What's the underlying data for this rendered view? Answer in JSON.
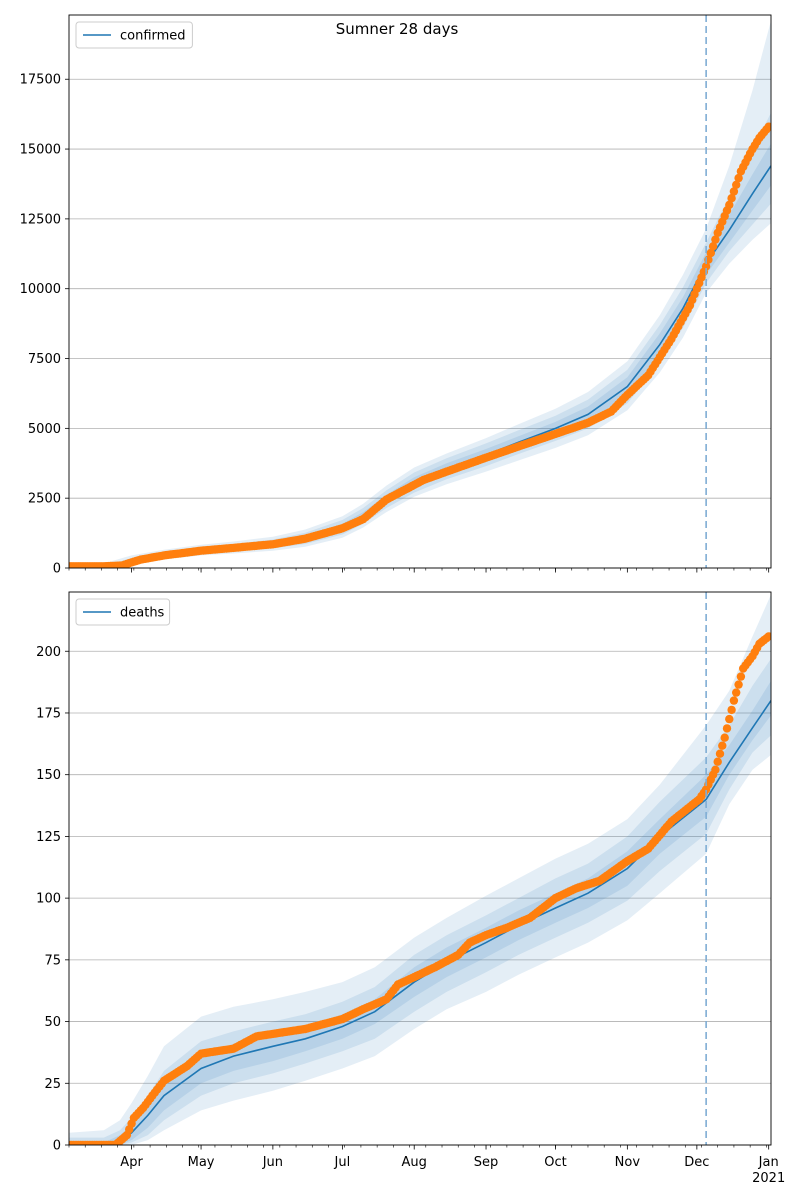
{
  "figure": {
    "title": "Sumner 28 days"
  },
  "colors": {
    "model": "#1f77b4",
    "band": "#1f77b4",
    "observed": "#ff7f0e",
    "grid": "#b0b0b0",
    "forecast_line": "#7fadd4"
  },
  "chart_data": [
    {
      "type": "line",
      "title": "",
      "legend": {
        "entries": [
          "confirmed"
        ],
        "placement": "upper-left"
      },
      "x_axis": {
        "type": "date",
        "range": [
          "2020-03-05",
          "2021-01-02"
        ],
        "ticks": [
          {
            "date": "2020-04-01",
            "label": "Apr"
          },
          {
            "date": "2020-05-01",
            "label": "May"
          },
          {
            "date": "2020-06-01",
            "label": "Jun"
          },
          {
            "date": "2020-07-01",
            "label": "Jul"
          },
          {
            "date": "2020-08-01",
            "label": "Aug"
          },
          {
            "date": "2020-09-01",
            "label": "Sep"
          },
          {
            "date": "2020-10-01",
            "label": "Oct"
          },
          {
            "date": "2020-11-01",
            "label": "Nov"
          },
          {
            "date": "2020-12-01",
            "label": "Dec"
          },
          {
            "date": "2021-01-01",
            "label": "Jan",
            "sublabel": "2021"
          }
        ],
        "show_tick_labels": false
      },
      "y_axis": {
        "range": [
          0,
          19800
        ],
        "ticks": [
          0,
          2500,
          5000,
          7500,
          10000,
          12500,
          15000,
          17500
        ],
        "grid": true
      },
      "forecast_start": "2020-12-05",
      "model": {
        "name": "confirmed",
        "points": [
          [
            "2020-03-05",
            0
          ],
          [
            "2020-03-12",
            5
          ],
          [
            "2020-03-19",
            20
          ],
          [
            "2020-03-24",
            60
          ],
          [
            "2020-04-01",
            250
          ],
          [
            "2020-04-15",
            450
          ],
          [
            "2020-05-01",
            620
          ],
          [
            "2020-05-15",
            720
          ],
          [
            "2020-06-01",
            860
          ],
          [
            "2020-06-15",
            1050
          ],
          [
            "2020-07-01",
            1450
          ],
          [
            "2020-07-10",
            1850
          ],
          [
            "2020-07-20",
            2450
          ],
          [
            "2020-08-01",
            3050
          ],
          [
            "2020-08-15",
            3550
          ],
          [
            "2020-09-01",
            4050
          ],
          [
            "2020-09-15",
            4500
          ],
          [
            "2020-10-01",
            5000
          ],
          [
            "2020-10-15",
            5500
          ],
          [
            "2020-11-01",
            6500
          ],
          [
            "2020-11-15",
            8000
          ],
          [
            "2020-11-25",
            9300
          ],
          [
            "2020-12-05",
            10900
          ],
          [
            "2020-12-15",
            12100
          ],
          [
            "2020-12-25",
            13400
          ],
          [
            "2021-01-02",
            14400
          ]
        ],
        "bands": [
          {
            "lower": [
              0,
              0,
              0,
              0,
              120,
              300,
              450,
              520,
              620,
              760,
              1080,
              1450,
              2000,
              2550,
              3000,
              3450,
              3850,
              4300,
              4750,
              5650,
              7000,
              8250,
              9850,
              10900,
              11750,
              12350
            ],
            "upper": [
              0,
              50,
              120,
              260,
              450,
              650,
              830,
              950,
              1120,
              1380,
              1850,
              2300,
              2950,
              3600,
              4100,
              4650,
              5150,
              5700,
              6300,
              7400,
              9050,
              10500,
              12150,
              14400,
              17100,
              19600
            ]
          },
          {
            "lower": [
              0,
              0,
              0,
              10,
              170,
              350,
              510,
              590,
              700,
              860,
              1200,
              1580,
              2150,
              2700,
              3180,
              3650,
              4080,
              4550,
              5000,
              5900,
              7300,
              8600,
              10200,
              11350,
              12300,
              13050
            ],
            "upper": [
              0,
              30,
              70,
              160,
              360,
              560,
              740,
              860,
              1020,
              1260,
              1720,
              2150,
              2780,
              3420,
              3930,
              4460,
              4930,
              5450,
              6030,
              7100,
              8700,
              10050,
              11650,
              13300,
              15000,
              16300
            ]
          },
          {
            "lower": [
              0,
              2,
              10,
              35,
              210,
              400,
              570,
              660,
              780,
              950,
              1320,
              1710,
              2290,
              2860,
              3360,
              3850,
              4300,
              4780,
              5250,
              6180,
              7600,
              8920,
              10500,
              11650,
              12800,
              13700
            ],
            "upper": [
              0,
              12,
              40,
              100,
              300,
              510,
              680,
              790,
              950,
              1160,
              1590,
              2000,
              2620,
              3250,
              3750,
              4260,
              4720,
              5230,
              5780,
              6830,
              8400,
              9700,
              11300,
              12650,
              14100,
              15200
            ]
          }
        ]
      },
      "observed": {
        "name": "confirmed observations",
        "points": [
          [
            "2020-03-05",
            60
          ],
          [
            "2020-03-12",
            60
          ],
          [
            "2020-03-20",
            60
          ],
          [
            "2020-03-28",
            90
          ],
          [
            "2020-04-01",
            200
          ],
          [
            "2020-04-05",
            300
          ],
          [
            "2020-04-15",
            450
          ],
          [
            "2020-05-01",
            620
          ],
          [
            "2020-05-15",
            720
          ],
          [
            "2020-06-01",
            850
          ],
          [
            "2020-06-15",
            1050
          ],
          [
            "2020-07-01",
            1420
          ],
          [
            "2020-07-10",
            1750
          ],
          [
            "2020-07-15",
            2100
          ],
          [
            "2020-07-20",
            2450
          ],
          [
            "2020-07-28",
            2800
          ],
          [
            "2020-08-05",
            3150
          ],
          [
            "2020-08-15",
            3450
          ],
          [
            "2020-09-01",
            3950
          ],
          [
            "2020-09-15",
            4350
          ],
          [
            "2020-10-01",
            4800
          ],
          [
            "2020-10-15",
            5200
          ],
          [
            "2020-10-25",
            5600
          ],
          [
            "2020-11-01",
            6200
          ],
          [
            "2020-11-10",
            6900
          ],
          [
            "2020-11-20",
            8200
          ],
          [
            "2020-11-28",
            9400
          ],
          [
            "2020-12-05",
            10800
          ],
          [
            "2020-12-10",
            12000
          ],
          [
            "2020-12-15",
            13000
          ],
          [
            "2020-12-20",
            14200
          ],
          [
            "2020-12-25",
            15000
          ],
          [
            "2020-12-28",
            15400
          ],
          [
            "2021-01-01",
            15800
          ]
        ]
      }
    },
    {
      "type": "line",
      "title": "",
      "legend": {
        "entries": [
          "deaths"
        ],
        "placement": "upper-left"
      },
      "x_axis": {
        "type": "date",
        "range": [
          "2020-03-05",
          "2021-01-02"
        ],
        "ticks": [
          {
            "date": "2020-04-01",
            "label": "Apr"
          },
          {
            "date": "2020-05-01",
            "label": "May"
          },
          {
            "date": "2020-06-01",
            "label": "Jun"
          },
          {
            "date": "2020-07-01",
            "label": "Jul"
          },
          {
            "date": "2020-08-01",
            "label": "Aug"
          },
          {
            "date": "2020-09-01",
            "label": "Sep"
          },
          {
            "date": "2020-10-01",
            "label": "Oct"
          },
          {
            "date": "2020-11-01",
            "label": "Nov"
          },
          {
            "date": "2020-12-01",
            "label": "Dec"
          },
          {
            "date": "2021-01-01",
            "label": "Jan",
            "sublabel": "2021"
          }
        ],
        "show_tick_labels": true
      },
      "y_axis": {
        "range": [
          0,
          224
        ],
        "ticks": [
          0,
          25,
          50,
          75,
          100,
          125,
          150,
          175,
          200
        ],
        "grid": true
      },
      "forecast_start": "2020-12-05",
      "model": {
        "name": "deaths",
        "points": [
          [
            "2020-03-05",
            0
          ],
          [
            "2020-03-20",
            0
          ],
          [
            "2020-03-27",
            2
          ],
          [
            "2020-04-01",
            5
          ],
          [
            "2020-04-08",
            12
          ],
          [
            "2020-04-15",
            20
          ],
          [
            "2020-05-01",
            31
          ],
          [
            "2020-05-15",
            36
          ],
          [
            "2020-06-01",
            40
          ],
          [
            "2020-06-15",
            43
          ],
          [
            "2020-07-01",
            48
          ],
          [
            "2020-07-15",
            54
          ],
          [
            "2020-08-01",
            66
          ],
          [
            "2020-08-15",
            74
          ],
          [
            "2020-09-01",
            82
          ],
          [
            "2020-09-15",
            89
          ],
          [
            "2020-10-01",
            96
          ],
          [
            "2020-10-15",
            102
          ],
          [
            "2020-11-01",
            112
          ],
          [
            "2020-11-15",
            125
          ],
          [
            "2020-12-05",
            140
          ],
          [
            "2020-12-15",
            155
          ],
          [
            "2020-12-25",
            169
          ],
          [
            "2021-01-02",
            180
          ]
        ],
        "bands": [
          {
            "lower": [
              0,
              0,
              0,
              0,
              2,
              6,
              14,
              18,
              22,
              26,
              31,
              36,
              47,
              55,
              62,
              69,
              76,
              82,
              91,
              102,
              118,
              138,
              152,
              158
            ],
            "upper": [
              5,
              6,
              10,
              17,
              28,
              40,
              52,
              56,
              59,
              62,
              66,
              72,
              84,
              92,
              101,
              108,
              116,
              122,
              132,
              146,
              170,
              184,
              206,
              223
            ]
          },
          {
            "lower": [
              0,
              0,
              0,
              1,
              4,
              10,
              20,
              25,
              29,
              33,
              38,
              43,
              54,
              62,
              70,
              77,
              84,
              90,
              99,
              111,
              126,
              144,
              159,
              166
            ],
            "upper": [
              3,
              3,
              6,
              11,
              20,
              30,
              42,
              46,
              50,
              53,
              58,
              64,
              77,
              85,
              93,
              100,
              108,
              114,
              125,
              139,
              157,
              170,
              186,
              197
            ]
          },
          {
            "lower": [
              0,
              0,
              0,
              2,
              7,
              14,
              25,
              30,
              34,
              38,
              43,
              49,
              60,
              68,
              76,
              83,
              90,
              96,
              105,
              118,
              133,
              150,
              164,
              174
            ],
            "upper": [
              1,
              1,
              4,
              8,
              16,
              26,
              36,
              41,
              45,
              48,
              53,
              59,
              72,
              80,
              88,
              95,
              102,
              108,
              119,
              132,
              150,
              162,
              176,
              188
            ]
          }
        ]
      },
      "observed": {
        "name": "deaths observations",
        "points": [
          [
            "2020-03-05",
            0
          ],
          [
            "2020-03-15",
            0
          ],
          [
            "2020-03-25",
            0
          ],
          [
            "2020-03-30",
            4
          ],
          [
            "2020-04-02",
            11
          ],
          [
            "2020-04-06",
            15
          ],
          [
            "2020-04-10",
            20
          ],
          [
            "2020-04-15",
            26
          ],
          [
            "2020-04-25",
            32
          ],
          [
            "2020-05-01",
            37
          ],
          [
            "2020-05-15",
            39
          ],
          [
            "2020-05-25",
            44
          ],
          [
            "2020-06-01",
            45
          ],
          [
            "2020-06-15",
            47
          ],
          [
            "2020-07-01",
            51
          ],
          [
            "2020-07-10",
            55
          ],
          [
            "2020-07-20",
            59
          ],
          [
            "2020-07-25",
            65
          ],
          [
            "2020-08-01",
            68
          ],
          [
            "2020-08-10",
            72
          ],
          [
            "2020-08-20",
            77
          ],
          [
            "2020-08-25",
            82
          ],
          [
            "2020-09-01",
            85
          ],
          [
            "2020-09-10",
            88
          ],
          [
            "2020-09-20",
            92
          ],
          [
            "2020-10-01",
            100
          ],
          [
            "2020-10-10",
            104
          ],
          [
            "2020-10-20",
            107
          ],
          [
            "2020-11-01",
            115
          ],
          [
            "2020-11-10",
            120
          ],
          [
            "2020-11-20",
            131
          ],
          [
            "2020-11-28",
            137
          ],
          [
            "2020-12-02",
            140
          ],
          [
            "2020-12-05",
            144
          ],
          [
            "2020-12-09",
            152
          ],
          [
            "2020-12-13",
            165
          ],
          [
            "2020-12-17",
            180
          ],
          [
            "2020-12-21",
            193
          ],
          [
            "2020-12-25",
            198
          ],
          [
            "2020-12-28",
            203
          ],
          [
            "2021-01-01",
            206
          ]
        ]
      }
    }
  ]
}
